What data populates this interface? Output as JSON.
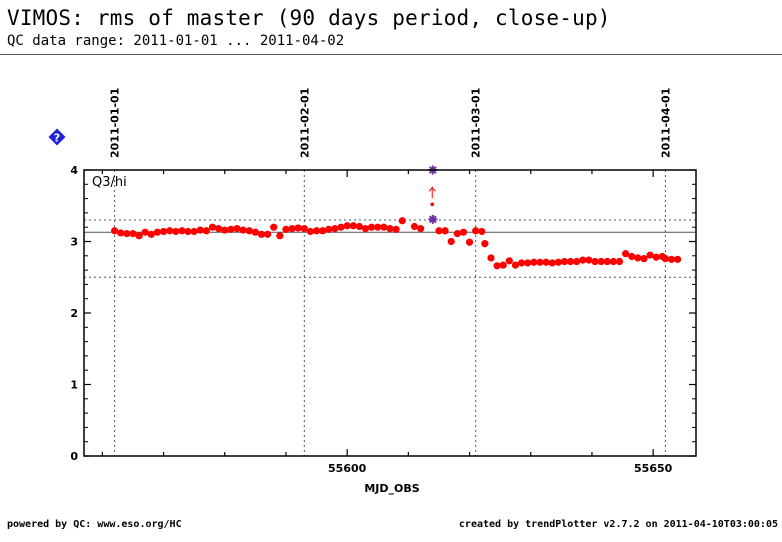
{
  "header": {
    "title": "VIMOS: rms of master (90 days period, close-up)",
    "subtitle": "QC data range: 2011-01-01 ... 2011-04-02"
  },
  "footer": {
    "left": "powered by QC: www.eso.org/HC",
    "right": "created by trendPlotter v2.7.2 on 2011-04-10T03:00:05"
  },
  "help_icon": {
    "label": "?",
    "color": "#2222dd"
  },
  "chart_data": {
    "type": "scatter",
    "title": "",
    "panel_label": "Q3/hi",
    "xlabel": "MJD_OBS",
    "ylabel": "",
    "xlim": [
      55557,
      55657
    ],
    "ylim": [
      0,
      4
    ],
    "x_ticks": [
      55600,
      55650
    ],
    "y_ticks": [
      0,
      1,
      2,
      3,
      4
    ],
    "date_markers": [
      {
        "label": "2011-01-01",
        "x": 55562
      },
      {
        "label": "2011-02-01",
        "x": 55593
      },
      {
        "label": "2011-03-01",
        "x": 55621
      },
      {
        "label": "2011-04-01",
        "x": 55652
      }
    ],
    "reference_lines": {
      "average": 3.13,
      "upper": 3.3,
      "lower": 2.5
    },
    "colors": {
      "points": "#ff0000",
      "outlier": "#7030a0",
      "reference": "#555555"
    },
    "series": [
      {
        "points": [
          [
            55562.0,
            3.15
          ],
          [
            55563.0,
            3.12
          ],
          [
            55564.0,
            3.11
          ],
          [
            55565.0,
            3.11
          ],
          [
            55566.0,
            3.08
          ],
          [
            55567.0,
            3.13
          ],
          [
            55568.0,
            3.1
          ],
          [
            55569.0,
            3.13
          ],
          [
            55570.0,
            3.14
          ],
          [
            55571.0,
            3.15
          ],
          [
            55572.0,
            3.14
          ],
          [
            55573.0,
            3.15
          ],
          [
            55574.0,
            3.14
          ],
          [
            55575.0,
            3.14
          ],
          [
            55576.0,
            3.16
          ],
          [
            55577.0,
            3.15
          ],
          [
            55578.0,
            3.2
          ],
          [
            55579.0,
            3.18
          ],
          [
            55580.0,
            3.16
          ],
          [
            55581.0,
            3.17
          ],
          [
            55582.0,
            3.18
          ],
          [
            55583.0,
            3.16
          ],
          [
            55584.0,
            3.15
          ],
          [
            55585.0,
            3.13
          ],
          [
            55586.0,
            3.1
          ],
          [
            55587.0,
            3.1
          ],
          [
            55588.0,
            3.2
          ],
          [
            55589.0,
            3.08
          ],
          [
            55590.0,
            3.17
          ],
          [
            55591.0,
            3.18
          ],
          [
            55592.0,
            3.19
          ],
          [
            55593.0,
            3.18
          ],
          [
            55594.0,
            3.14
          ],
          [
            55595.0,
            3.15
          ],
          [
            55596.0,
            3.15
          ],
          [
            55597.0,
            3.17
          ],
          [
            55598.0,
            3.18
          ],
          [
            55599.0,
            3.2
          ],
          [
            55600.0,
            3.22
          ],
          [
            55601.0,
            3.22
          ],
          [
            55602.0,
            3.21
          ],
          [
            55603.0,
            3.18
          ],
          [
            55604.0,
            3.2
          ],
          [
            55605.0,
            3.2
          ],
          [
            55606.0,
            3.2
          ],
          [
            55607.0,
            3.18
          ],
          [
            55608.0,
            3.17
          ],
          [
            55609.0,
            3.29
          ],
          [
            55611.0,
            3.21
          ],
          [
            55612.0,
            3.18
          ],
          [
            55615.0,
            3.15
          ],
          [
            55616.0,
            3.15
          ],
          [
            55617.0,
            3.0
          ],
          [
            55618.0,
            3.11
          ],
          [
            55619.0,
            3.13
          ],
          [
            55620.0,
            2.99
          ],
          [
            55621.0,
            3.15
          ],
          [
            55622.0,
            3.14
          ],
          [
            55622.5,
            2.97
          ],
          [
            55623.5,
            2.77
          ],
          [
            55624.5,
            2.66
          ],
          [
            55625.5,
            2.67
          ],
          [
            55626.5,
            2.73
          ],
          [
            55627.5,
            2.67
          ],
          [
            55628.5,
            2.7
          ],
          [
            55629.5,
            2.7
          ],
          [
            55630.5,
            2.71
          ],
          [
            55631.5,
            2.71
          ],
          [
            55632.5,
            2.71
          ],
          [
            55633.5,
            2.7
          ],
          [
            55634.5,
            2.71
          ],
          [
            55635.5,
            2.72
          ],
          [
            55636.5,
            2.72
          ],
          [
            55637.5,
            2.72
          ],
          [
            55638.5,
            2.74
          ],
          [
            55639.5,
            2.74
          ],
          [
            55640.5,
            2.72
          ],
          [
            55641.5,
            2.72
          ],
          [
            55642.5,
            2.72
          ],
          [
            55643.5,
            2.72
          ],
          [
            55644.5,
            2.72
          ],
          [
            55645.5,
            2.83
          ],
          [
            55646.5,
            2.79
          ],
          [
            55647.5,
            2.77
          ],
          [
            55648.5,
            2.76
          ],
          [
            55649.5,
            2.81
          ],
          [
            55650.5,
            2.78
          ],
          [
            55651.5,
            2.79
          ],
          [
            55652.0,
            2.76
          ],
          [
            55653.0,
            2.75
          ],
          [
            55654.0,
            2.75
          ]
        ]
      }
    ],
    "outliers": [
      {
        "x": 55614.0,
        "y": 3.31,
        "color": "#7030a0"
      },
      {
        "x": 55614.0,
        "y": 4.0,
        "color": "#7030a0",
        "clipped": true
      }
    ],
    "small_point": {
      "x": 55613.9,
      "y": 3.52
    }
  }
}
